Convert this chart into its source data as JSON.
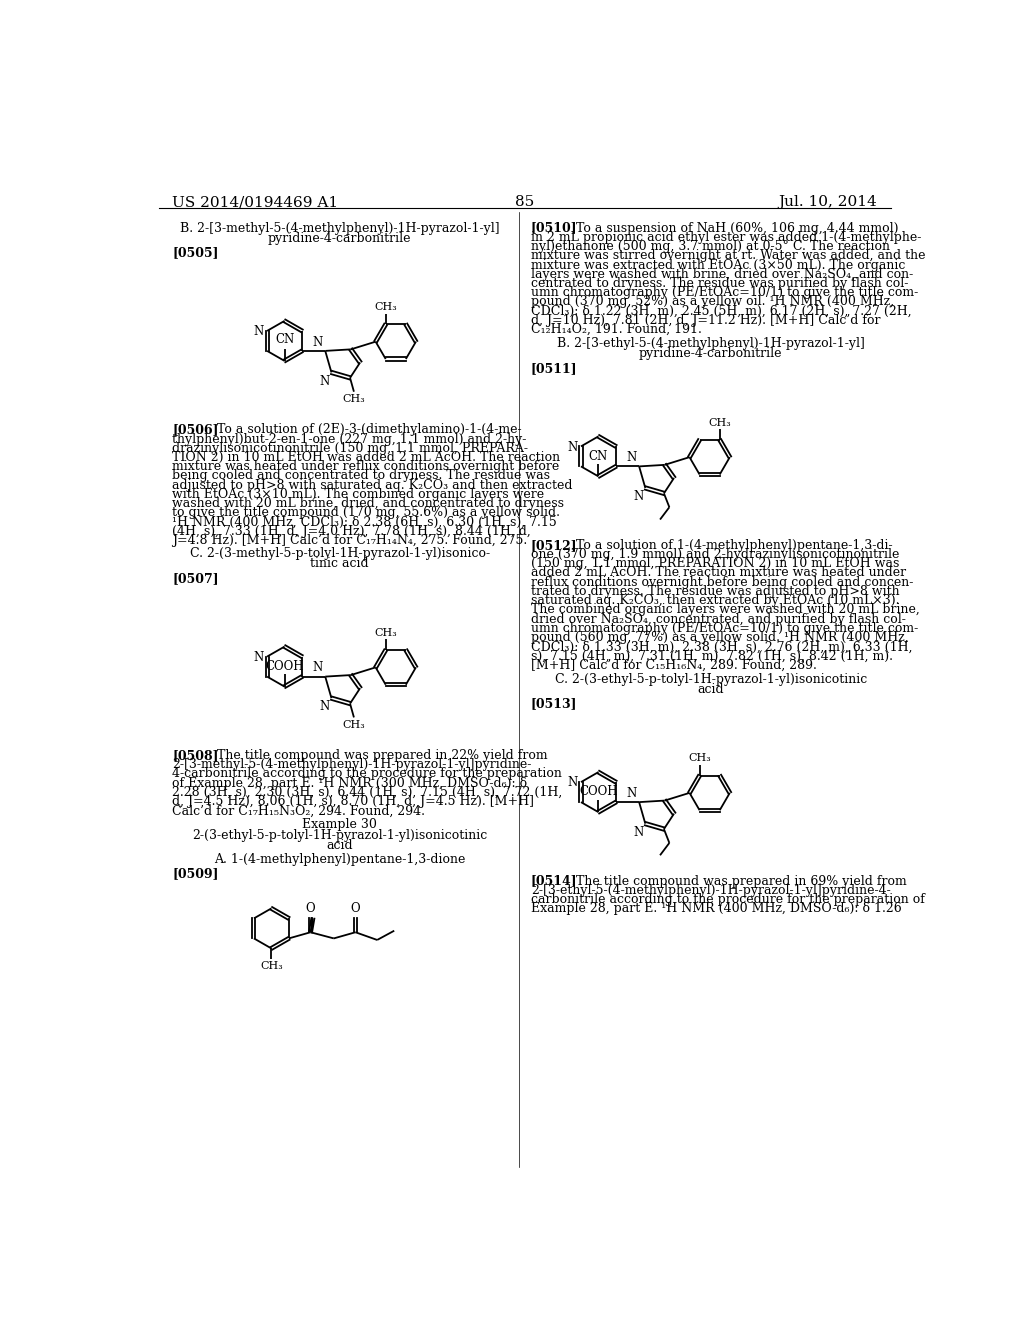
{
  "page_header_left": "US 2014/0194469 A1",
  "page_header_right": "Jul. 10, 2014",
  "page_number": "85",
  "bg_color": "#ffffff",
  "text_color": "#000000"
}
